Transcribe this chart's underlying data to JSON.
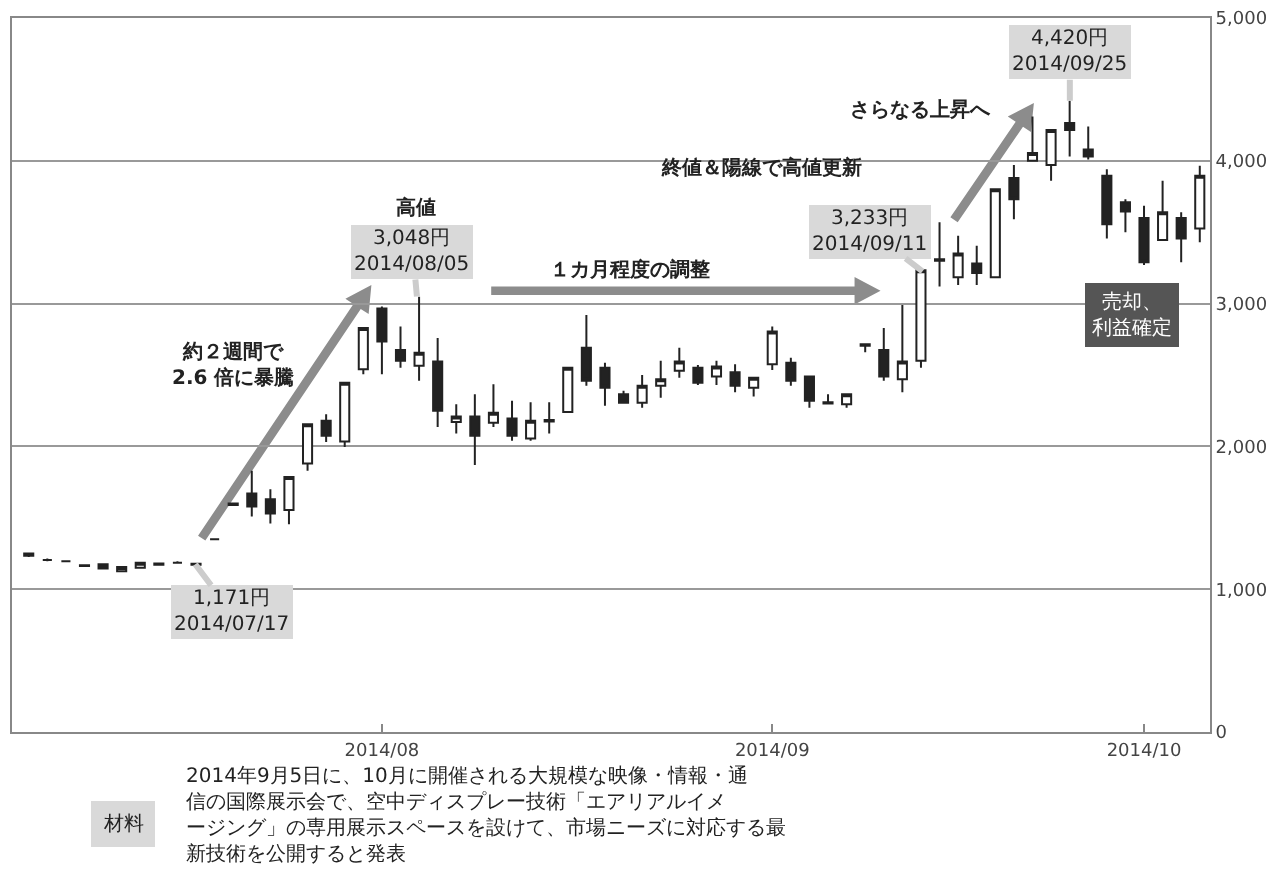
{
  "chart_data": {
    "type": "candlestick",
    "categories": [
      null,
      null,
      null,
      null,
      null,
      null,
      null,
      null,
      null,
      null,
      null,
      null,
      null,
      null,
      null,
      null,
      null,
      null,
      null,
      "2014/08",
      null,
      null,
      null,
      null,
      null,
      null,
      null,
      null,
      null,
      null,
      null,
      null,
      null,
      null,
      null,
      null,
      null,
      null,
      null,
      null,
      "2014/09",
      null,
      null,
      null,
      null,
      null,
      null,
      null,
      null,
      null,
      null,
      null,
      null,
      null,
      null,
      null,
      null,
      null,
      null,
      null,
      "2014/10",
      null,
      null,
      null
    ],
    "ohlc": [
      [
        1250,
        1255,
        1225,
        1235
      ],
      [
        1205,
        1215,
        1195,
        1205
      ],
      [
        1195,
        1200,
        1190,
        1195
      ],
      [
        1162,
        1170,
        1160,
        1168
      ],
      [
        1175,
        1180,
        1140,
        1145
      ],
      [
        1125,
        1157,
        1120,
        1155
      ],
      [
        1150,
        1185,
        1148,
        1185
      ],
      [
        1172,
        1185,
        1168,
        1180
      ],
      [
        1185,
        1195,
        1178,
        1185
      ],
      [
        1178,
        1180,
        1171,
        1171
      ],
      [
        1350,
        1355,
        1345,
        1350
      ],
      [
        1590,
        1600,
        1585,
        1600
      ],
      [
        1670,
        1830,
        1510,
        1580
      ],
      [
        1630,
        1700,
        1460,
        1530
      ],
      [
        1555,
        1785,
        1455,
        1785
      ],
      [
        1880,
        2160,
        1830,
        2155
      ],
      [
        2180,
        2225,
        2030,
        2075
      ],
      [
        2035,
        2445,
        1995,
        2445
      ],
      [
        2540,
        2830,
        2505,
        2830
      ],
      [
        2965,
        2980,
        2505,
        2735
      ],
      [
        2675,
        2840,
        2550,
        2600
      ],
      [
        2565,
        3048,
        2460,
        2655
      ],
      [
        2595,
        2760,
        2135,
        2250
      ],
      [
        2170,
        2295,
        2090,
        2210
      ],
      [
        2210,
        2365,
        1870,
        2075
      ],
      [
        2165,
        2435,
        2135,
        2235
      ],
      [
        2195,
        2320,
        2040,
        2075
      ],
      [
        2055,
        2310,
        2040,
        2180
      ],
      [
        2175,
        2310,
        2090,
        2185
      ],
      [
        2240,
        2550,
        2240,
        2550
      ],
      [
        2690,
        2920,
        2425,
        2460
      ],
      [
        2550,
        2585,
        2285,
        2410
      ],
      [
        2365,
        2390,
        2300,
        2305
      ],
      [
        2305,
        2500,
        2270,
        2425
      ],
      [
        2425,
        2600,
        2340,
        2470
      ],
      [
        2530,
        2690,
        2480,
        2595
      ],
      [
        2550,
        2570,
        2430,
        2445
      ],
      [
        2490,
        2600,
        2430,
        2560
      ],
      [
        2520,
        2575,
        2380,
        2425
      ],
      [
        2410,
        2480,
        2350,
        2480
      ],
      [
        2575,
        2840,
        2535,
        2805
      ],
      [
        2585,
        2620,
        2425,
        2460
      ],
      [
        2490,
        2490,
        2270,
        2320
      ],
      [
        2300,
        2365,
        2295,
        2310
      ],
      [
        2295,
        2365,
        2270,
        2365
      ],
      [
        2715,
        2715,
        2660,
        2705
      ],
      [
        2675,
        2830,
        2460,
        2490
      ],
      [
        2470,
        2990,
        2380,
        2595
      ],
      [
        2600,
        3233,
        2550,
        3233
      ],
      [
        3300,
        3570,
        3120,
        3310
      ],
      [
        3185,
        3475,
        3130,
        3350
      ],
      [
        3280,
        3405,
        3130,
        3215
      ],
      [
        3185,
        3800,
        3185,
        3800
      ],
      [
        3880,
        3970,
        3590,
        3730
      ],
      [
        4000,
        4310,
        4000,
        4055
      ],
      [
        3970,
        4215,
        3860,
        4215
      ],
      [
        4265,
        4420,
        4030,
        4215
      ],
      [
        4080,
        4240,
        4010,
        4030
      ],
      [
        3895,
        3940,
        3455,
        3555
      ],
      [
        3710,
        3730,
        3500,
        3645
      ],
      [
        3600,
        3685,
        3270,
        3290
      ],
      [
        3445,
        3860,
        3445,
        3640
      ],
      [
        3600,
        3640,
        3290,
        3455
      ],
      [
        3525,
        3965,
        3430,
        3895
      ]
    ],
    "ylim": [
      0,
      5000
    ],
    "yticks": [
      0,
      {
        "value": 1000,
        "label": "1,000"
      },
      {
        "value": 2000,
        "label": "2,000"
      },
      {
        "value": 3000,
        "label": "3,000"
      },
      {
        "value": 4000,
        "label": "4,000"
      },
      {
        "value": 5000,
        "label": "5,000"
      }
    ],
    "grid": "y",
    "legend": false,
    "annotations": [
      "高値",
      "約２週間で2.6 倍に暴騰",
      "１カ月程度の調整",
      "終値＆陽線で高値更新",
      "さらなる上昇へ",
      "売却、利益確定",
      "材料",
      "2014年9月5日に、10月に開催される大規模な映像・情報・通信の国際展示会で、空中ディスプレー技術「エアリアルイメージング」の専用展示スペースを設けて、市場ニーズに対応する最新技術を公開すると発表",
      "1,171円\n2014/07/17",
      "3,048円\n2014/08/05",
      "3,233円\n2014/09/11",
      "4,420円\n2014/09/25"
    ]
  }
}
